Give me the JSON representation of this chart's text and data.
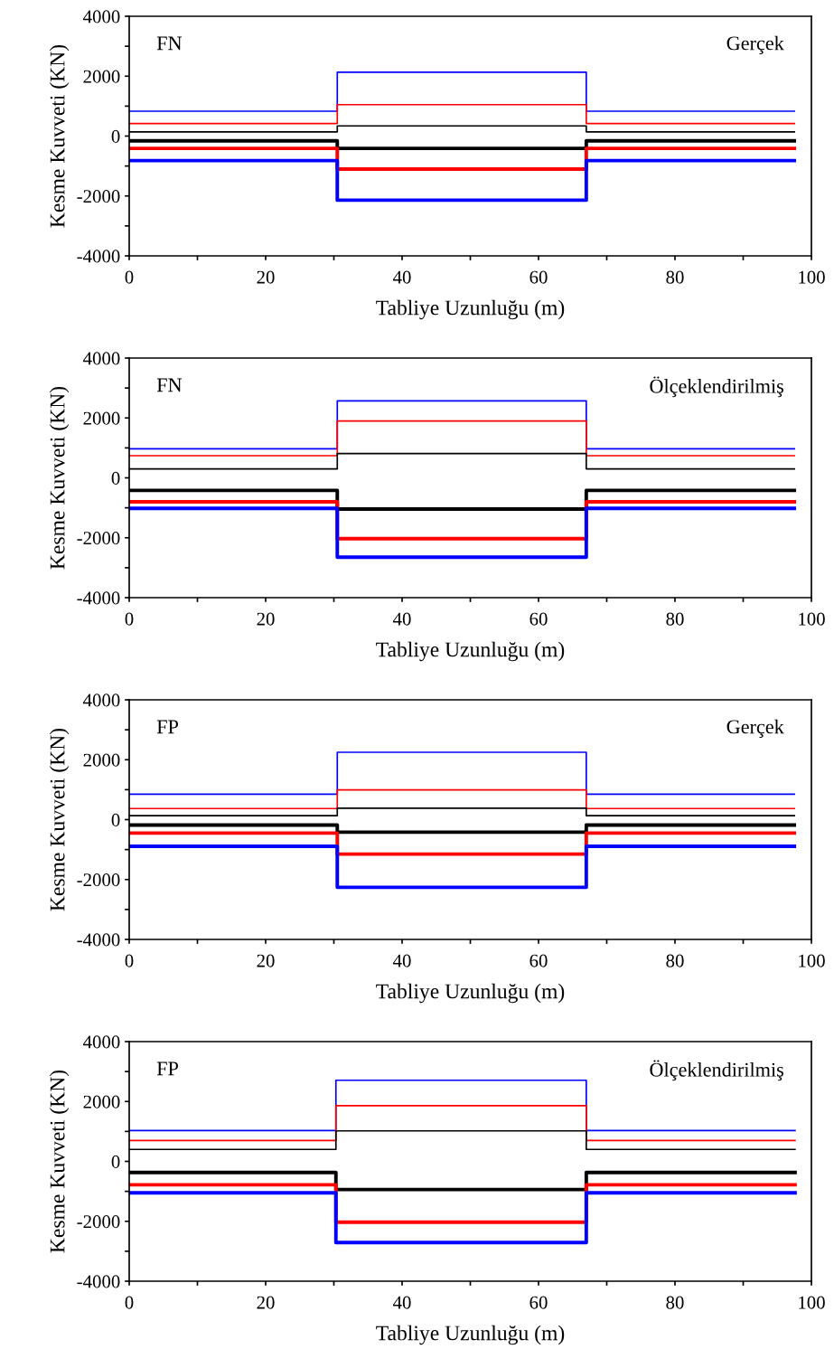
{
  "chart_data": [
    {
      "type": "step",
      "xlabel": "Tabliye Uzunluğu (m)",
      "ylabel": "Kesme Kuvveti (KN)",
      "annotations": [
        "FN",
        "Gerçek"
      ],
      "x": [
        0,
        30.5,
        67,
        97.5
      ],
      "xlim": [
        0,
        100
      ],
      "ylim": [
        -4000,
        4000
      ],
      "xticks": [
        0,
        {
          "value": 10,
          "label": null
        },
        20,
        {
          "value": 30,
          "label": null
        },
        40,
        {
          "value": 50,
          "label": null
        },
        60,
        {
          "value": 70,
          "label": null
        },
        80,
        {
          "value": 90,
          "label": null
        },
        100
      ],
      "yticks": [
        -4000,
        {
          "value": -3000,
          "label": null
        },
        -2000,
        {
          "value": -1000,
          "label": null
        },
        0,
        {
          "value": 1000,
          "label": null
        },
        2000,
        {
          "value": 3000,
          "label": null
        },
        4000
      ],
      "grid": false,
      "legend": false,
      "series": [
        {
          "color": "#0000ff",
          "values": [
            830,
            2130,
            830,
            830
          ]
        },
        {
          "color": "#ff0000",
          "values": [
            420,
            1050,
            420,
            420
          ]
        },
        {
          "color": "#000000",
          "values": [
            140,
            340,
            140,
            140
          ]
        },
        {
          "color": "#000000",
          "values": [
            -160,
            -410,
            -160,
            -160
          ]
        },
        {
          "color": "#ff0000",
          "values": [
            -410,
            -1100,
            -410,
            -410
          ]
        },
        {
          "color": "#0000ff",
          "values": [
            -820,
            -2140,
            -820,
            -820
          ]
        }
      ]
    },
    {
      "type": "step",
      "xlabel": "Tabliye Uzunluğu (m)",
      "ylabel": "Kesme Kuvveti (KN)",
      "annotations": [
        "FN",
        "Ölçeklendirilmiş"
      ],
      "x": [
        0,
        30.5,
        67,
        97.5
      ],
      "xlim": [
        0,
        100
      ],
      "ylim": [
        -4000,
        4000
      ],
      "xticks": [
        0,
        {
          "value": 10,
          "label": null
        },
        20,
        {
          "value": 30,
          "label": null
        },
        40,
        {
          "value": 50,
          "label": null
        },
        60,
        {
          "value": 70,
          "label": null
        },
        80,
        {
          "value": 90,
          "label": null
        },
        100
      ],
      "yticks": [
        -4000,
        {
          "value": -3000,
          "label": null
        },
        -2000,
        {
          "value": -1000,
          "label": null
        },
        0,
        {
          "value": 1000,
          "label": null
        },
        2000,
        {
          "value": 3000,
          "label": null
        },
        4000
      ],
      "grid": false,
      "legend": false,
      "series": [
        {
          "color": "#0000ff",
          "values": [
            970,
            2570,
            970,
            970
          ]
        },
        {
          "color": "#ff0000",
          "values": [
            740,
            1900,
            740,
            740
          ]
        },
        {
          "color": "#000000",
          "values": [
            300,
            810,
            300,
            300
          ]
        },
        {
          "color": "#000000",
          "values": [
            -420,
            -1040,
            -420,
            -420
          ]
        },
        {
          "color": "#ff0000",
          "values": [
            -800,
            -2030,
            -800,
            -800
          ]
        },
        {
          "color": "#0000ff",
          "values": [
            -1020,
            -2650,
            -1020,
            -1020
          ]
        }
      ]
    },
    {
      "type": "step",
      "xlabel": "Tabliye Uzunluğu (m)",
      "ylabel": "Kesme Kuvveti (KN)",
      "annotations": [
        "FP",
        "Gerçek"
      ],
      "x": [
        0,
        30.5,
        67,
        97.5
      ],
      "xlim": [
        0,
        100
      ],
      "ylim": [
        -4000,
        4000
      ],
      "xticks": [
        0,
        {
          "value": 10,
          "label": null
        },
        20,
        {
          "value": 30,
          "label": null
        },
        40,
        {
          "value": 50,
          "label": null
        },
        60,
        {
          "value": 70,
          "label": null
        },
        80,
        {
          "value": 90,
          "label": null
        },
        100
      ],
      "yticks": [
        -4000,
        {
          "value": -3000,
          "label": null
        },
        -2000,
        {
          "value": -1000,
          "label": null
        },
        0,
        {
          "value": 1000,
          "label": null
        },
        2000,
        {
          "value": 3000,
          "label": null
        },
        4000
      ],
      "grid": false,
      "legend": false,
      "series": [
        {
          "color": "#0000ff",
          "values": [
            850,
            2250,
            850,
            850
          ]
        },
        {
          "color": "#ff0000",
          "values": [
            370,
            990,
            370,
            370
          ]
        },
        {
          "color": "#000000",
          "values": [
            130,
            380,
            130,
            130
          ]
        },
        {
          "color": "#000000",
          "values": [
            -180,
            -420,
            -180,
            -180
          ]
        },
        {
          "color": "#ff0000",
          "values": [
            -450,
            -1150,
            -450,
            -450
          ]
        },
        {
          "color": "#0000ff",
          "values": [
            -890,
            -2260,
            -890,
            -890
          ]
        }
      ]
    },
    {
      "type": "step",
      "xlabel": "Tabliye Uzunluğu (m)",
      "ylabel": "Kesme Kuvveti (KN)",
      "annotations": [
        "FP",
        "Ölçeklendirilmiş"
      ],
      "x": [
        0,
        30.3,
        67,
        97.6
      ],
      "xlim": [
        0,
        100
      ],
      "ylim": [
        -4000,
        4000
      ],
      "xticks": [
        0,
        {
          "value": 10,
          "label": null
        },
        20,
        {
          "value": 30,
          "label": null
        },
        40,
        {
          "value": 50,
          "label": null
        },
        60,
        {
          "value": 70,
          "label": null
        },
        80,
        {
          "value": 90,
          "label": null
        },
        100
      ],
      "yticks": [
        -4000,
        {
          "value": -3000,
          "label": null
        },
        -2000,
        {
          "value": -1000,
          "label": null
        },
        0,
        {
          "value": 1000,
          "label": null
        },
        2000,
        {
          "value": 3000,
          "label": null
        },
        4000
      ],
      "grid": false,
      "legend": false,
      "series": [
        {
          "color": "#0000ff",
          "values": [
            1030,
            2710,
            1030,
            1030
          ]
        },
        {
          "color": "#ff0000",
          "values": [
            700,
            1860,
            700,
            700
          ]
        },
        {
          "color": "#000000",
          "values": [
            400,
            1020,
            400,
            400
          ]
        },
        {
          "color": "#000000",
          "values": [
            -370,
            -940,
            -370,
            -370
          ]
        },
        {
          "color": "#ff0000",
          "values": [
            -780,
            -2030,
            -780,
            -780
          ]
        },
        {
          "color": "#0000ff",
          "values": [
            -1050,
            -2710,
            -1050,
            -1050
          ]
        }
      ]
    }
  ]
}
